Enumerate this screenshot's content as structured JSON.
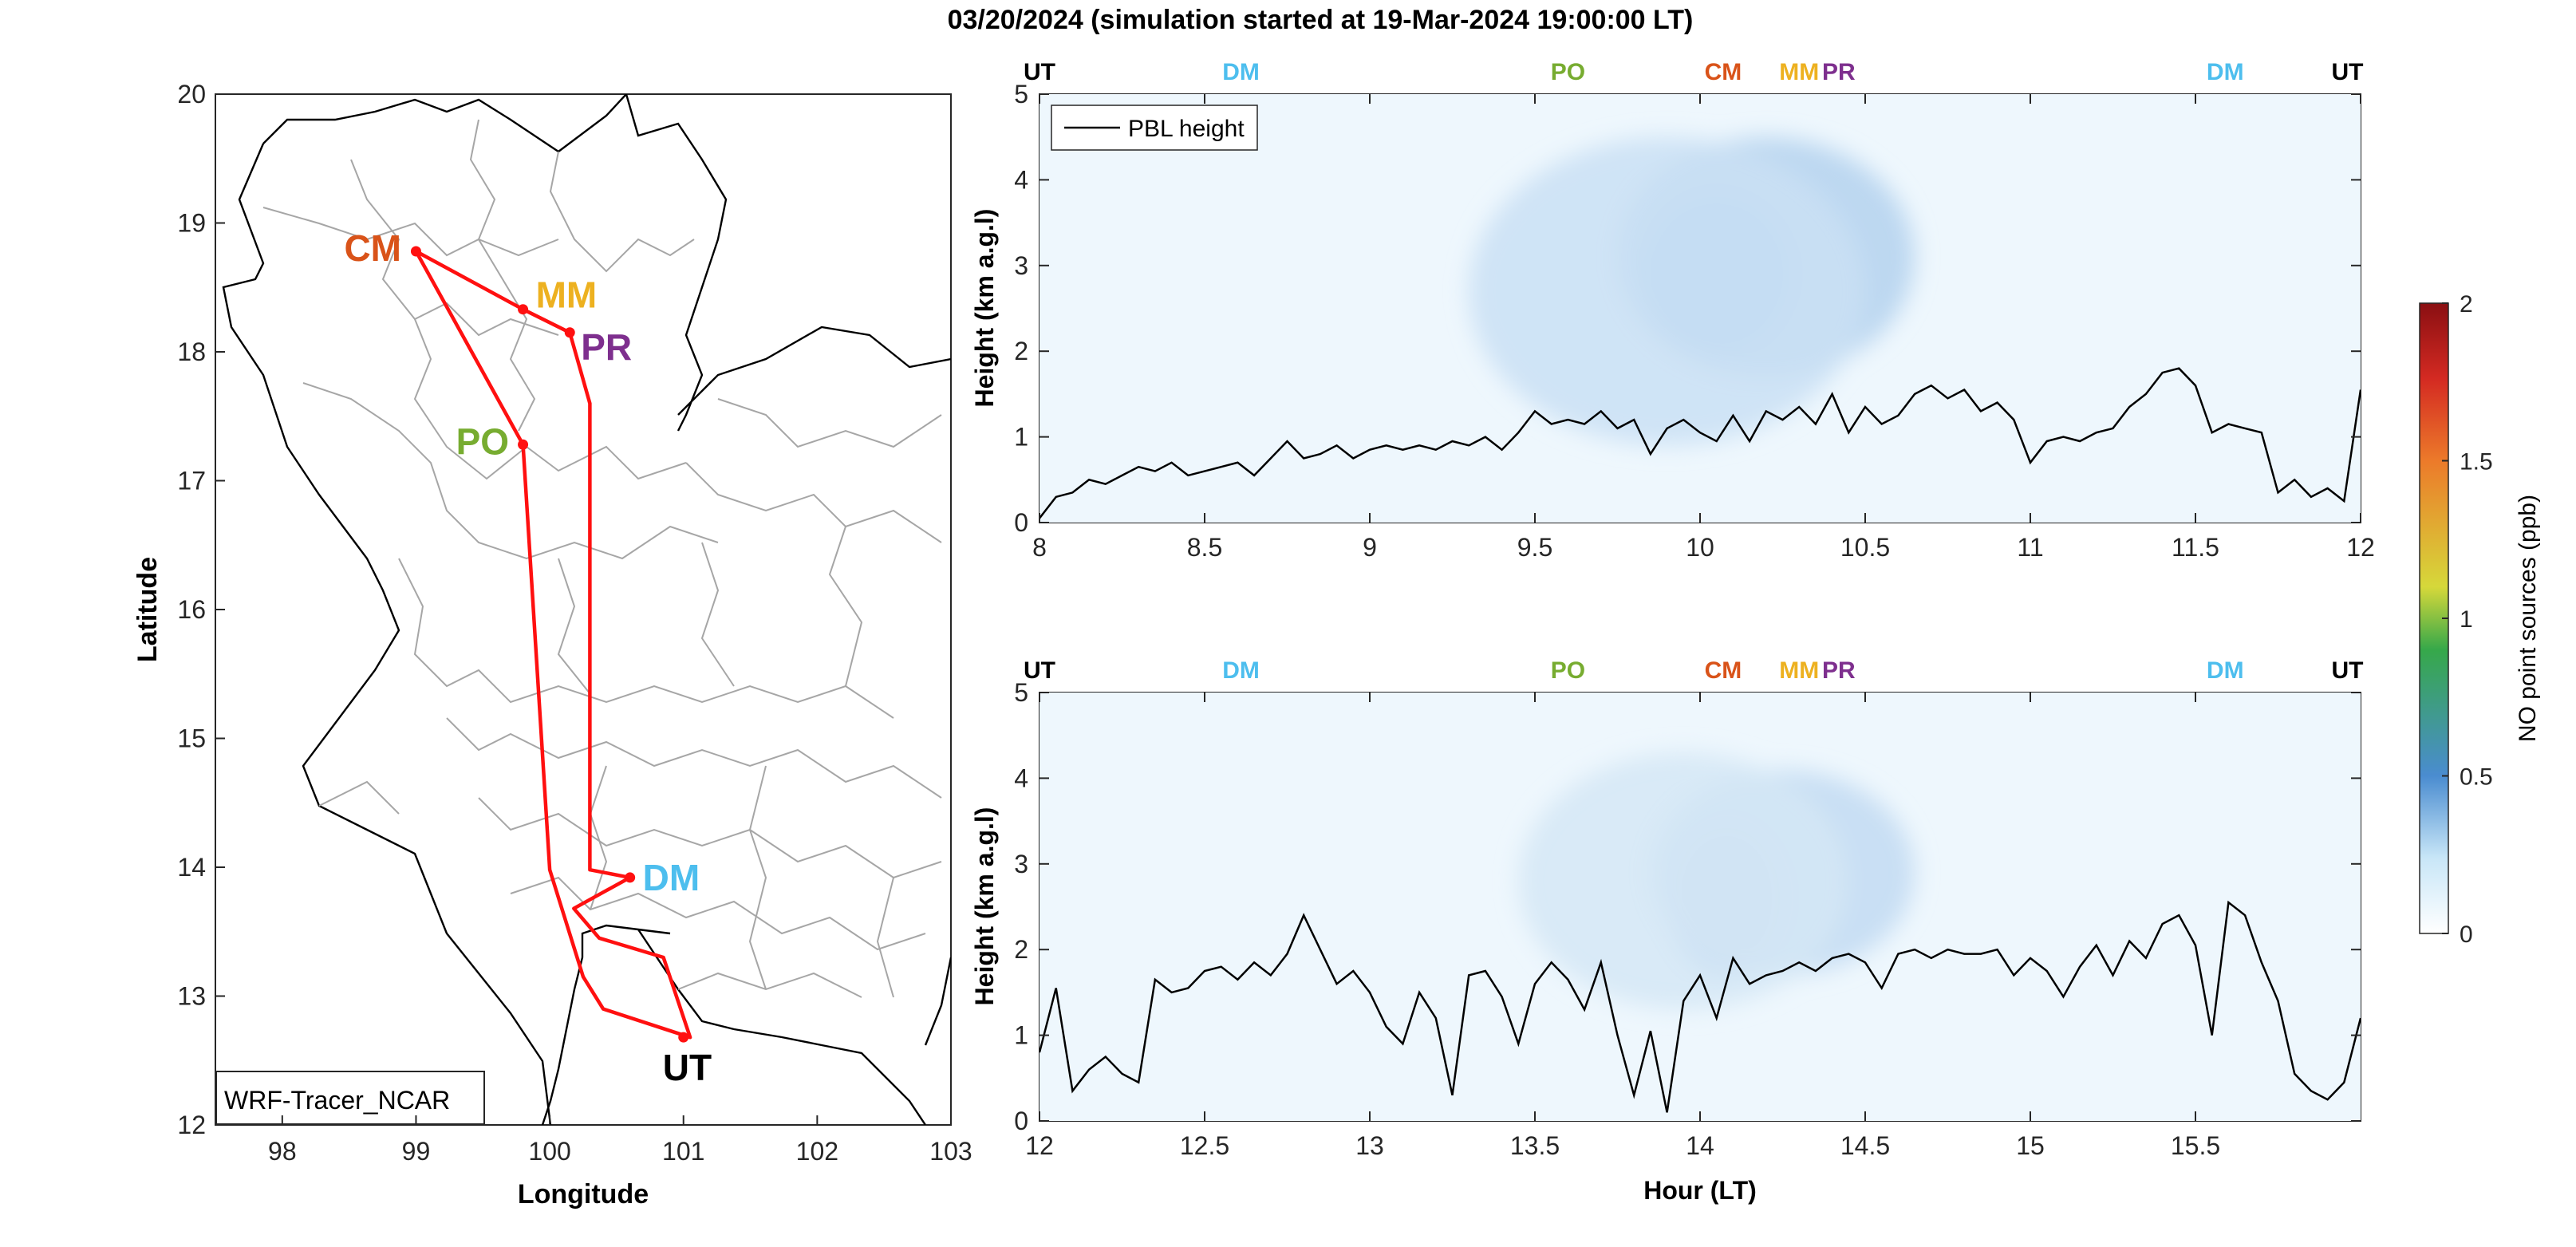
{
  "figure": {
    "title": "03/20/2024 (simulation started at 19-Mar-2024 19:00:00 LT)"
  },
  "map": {
    "xlabel": "Longitude",
    "ylabel": "Latitude",
    "xlim": [
      97.5,
      103
    ],
    "ylim": [
      12,
      20
    ],
    "xticks": [
      98,
      99,
      100,
      101,
      102,
      103
    ],
    "yticks": [
      12,
      13,
      14,
      15,
      16,
      17,
      18,
      19,
      20
    ],
    "model_label": "WRF-Tracer_NCAR",
    "route": [
      [
        99.0,
        18.78
      ],
      [
        99.8,
        18.33
      ],
      [
        100.15,
        18.15
      ],
      [
        100.3,
        17.6
      ],
      [
        100.3,
        13.98
      ],
      [
        100.6,
        13.92
      ],
      [
        100.18,
        13.68
      ],
      [
        100.37,
        13.45
      ],
      [
        100.85,
        13.3
      ],
      [
        101.05,
        12.68
      ],
      [
        100.4,
        12.9
      ],
      [
        100.25,
        13.15
      ],
      [
        100.0,
        13.98
      ],
      [
        99.8,
        17.28
      ],
      [
        99.0,
        18.78
      ]
    ],
    "stations": [
      {
        "code": "CM",
        "lon": 99.0,
        "lat": 18.78,
        "color": "#d95319"
      },
      {
        "code": "MM",
        "lon": 99.8,
        "lat": 18.33,
        "color": "#edb120"
      },
      {
        "code": "PR",
        "lon": 100.15,
        "lat": 18.15,
        "color": "#7e2f8e"
      },
      {
        "code": "PO",
        "lon": 99.8,
        "lat": 17.28,
        "color": "#77ac30"
      },
      {
        "code": "DM",
        "lon": 100.6,
        "lat": 13.92,
        "color": "#4dbeee"
      },
      {
        "code": "UT",
        "lon": 101.0,
        "lat": 12.68,
        "color": "#000000"
      }
    ]
  },
  "colorbar": {
    "label": "NO point sources (ppb)",
    "range": [
      0,
      2
    ],
    "ticks": [
      "0",
      "0.5",
      "1",
      "1.5",
      "2"
    ]
  },
  "chart_data": [
    {
      "type": "line",
      "title": "",
      "ylabel": "Height (km a.g.l)",
      "xlabel": "",
      "xlim": [
        8,
        12
      ],
      "ylim": [
        0,
        5
      ],
      "xticks": [
        "8",
        "8.5",
        "9",
        "9.5",
        "10",
        "10.5",
        "11",
        "11.5",
        "12"
      ],
      "yticks": [
        "0",
        "1",
        "2",
        "3",
        "4",
        "5"
      ],
      "legend": {
        "placement": "top-left",
        "entries": [
          "PBL height"
        ]
      },
      "top_markers": [
        {
          "code": "UT",
          "x": 8.0,
          "color": "#000000"
        },
        {
          "code": "DM",
          "x": 8.61,
          "color": "#4dbeee"
        },
        {
          "code": "PO",
          "x": 9.6,
          "color": "#77ac30"
        },
        {
          "code": "CM",
          "x": 10.07,
          "color": "#d95319"
        },
        {
          "code": "MM",
          "x": 10.3,
          "color": "#edb120"
        },
        {
          "code": "PR",
          "x": 10.42,
          "color": "#7e2f8e"
        },
        {
          "code": "DM",
          "x": 11.59,
          "color": "#4dbeee"
        },
        {
          "code": "UT",
          "x": 11.96,
          "color": "#000000"
        }
      ],
      "concentration_field": {
        "units": "ppb",
        "blobs": [
          {
            "x": 10.05,
            "y": 2.9,
            "sx": 0.22,
            "sy": 0.9,
            "value": 0.5
          },
          {
            "x": 10.2,
            "y": 3.1,
            "sx": 0.45,
            "sy": 1.4,
            "value": 0.2
          },
          {
            "x": 9.9,
            "y": 2.7,
            "sx": 0.6,
            "sy": 1.8,
            "value": 0.12
          }
        ]
      },
      "series": [
        {
          "name": "PBL height",
          "x": [
            8.0,
            8.05,
            8.1,
            8.15,
            8.2,
            8.25,
            8.3,
            8.35,
            8.4,
            8.45,
            8.5,
            8.55,
            8.6,
            8.65,
            8.7,
            8.75,
            8.8,
            8.85,
            8.9,
            8.95,
            9.0,
            9.05,
            9.1,
            9.15,
            9.2,
            9.25,
            9.3,
            9.35,
            9.4,
            9.45,
            9.5,
            9.55,
            9.6,
            9.65,
            9.7,
            9.75,
            9.8,
            9.85,
            9.9,
            9.95,
            10.0,
            10.05,
            10.1,
            10.15,
            10.2,
            10.25,
            10.3,
            10.35,
            10.4,
            10.45,
            10.5,
            10.55,
            10.6,
            10.65,
            10.7,
            10.75,
            10.8,
            10.85,
            10.9,
            10.95,
            11.0,
            11.05,
            11.1,
            11.15,
            11.2,
            11.25,
            11.3,
            11.35,
            11.4,
            11.45,
            11.5,
            11.55,
            11.6,
            11.65,
            11.7,
            11.75,
            11.8,
            11.85,
            11.9,
            11.95,
            12.0
          ],
          "values": [
            0.05,
            0.3,
            0.35,
            0.5,
            0.45,
            0.55,
            0.65,
            0.6,
            0.7,
            0.55,
            0.6,
            0.65,
            0.7,
            0.55,
            0.75,
            0.95,
            0.75,
            0.8,
            0.9,
            0.75,
            0.85,
            0.9,
            0.85,
            0.9,
            0.85,
            0.95,
            0.9,
            1.0,
            0.85,
            1.05,
            1.3,
            1.15,
            1.2,
            1.15,
            1.3,
            1.1,
            1.2,
            0.8,
            1.1,
            1.2,
            1.05,
            0.95,
            1.25,
            0.95,
            1.3,
            1.2,
            1.35,
            1.15,
            1.5,
            1.05,
            1.35,
            1.15,
            1.25,
            1.5,
            1.6,
            1.45,
            1.55,
            1.3,
            1.4,
            1.2,
            0.7,
            0.95,
            1.0,
            0.95,
            1.05,
            1.1,
            1.35,
            1.5,
            1.75,
            1.8,
            1.6,
            1.05,
            1.15,
            1.1,
            1.05,
            0.35,
            0.5,
            0.3,
            0.4,
            0.25,
            1.55
          ]
        }
      ]
    },
    {
      "type": "line",
      "title": "",
      "ylabel": "Height (km a.g.l)",
      "xlabel": "Hour (LT)",
      "xlim": [
        12,
        16
      ],
      "ylim": [
        0,
        5
      ],
      "xticks": [
        "12",
        "12.5",
        "13",
        "13.5",
        "14",
        "14.5",
        "15",
        "15.5"
      ],
      "yticks": [
        "0",
        "1",
        "2",
        "3",
        "4",
        "5"
      ],
      "top_markers": [
        {
          "code": "UT",
          "x": 12.0,
          "color": "#000000"
        },
        {
          "code": "DM",
          "x": 12.61,
          "color": "#4dbeee"
        },
        {
          "code": "PO",
          "x": 13.6,
          "color": "#77ac30"
        },
        {
          "code": "CM",
          "x": 14.07,
          "color": "#d95319"
        },
        {
          "code": "MM",
          "x": 14.3,
          "color": "#edb120"
        },
        {
          "code": "PR",
          "x": 14.42,
          "color": "#7e2f8e"
        },
        {
          "code": "DM",
          "x": 15.59,
          "color": "#4dbeee"
        },
        {
          "code": "UT",
          "x": 15.96,
          "color": "#000000"
        }
      ],
      "concentration_field": {
        "units": "ppb",
        "blobs": [
          {
            "x": 14.08,
            "y": 2.6,
            "sx": 0.18,
            "sy": 0.9,
            "value": 0.3
          },
          {
            "x": 14.25,
            "y": 2.9,
            "sx": 0.4,
            "sy": 1.2,
            "value": 0.15
          },
          {
            "x": 13.95,
            "y": 2.8,
            "sx": 0.5,
            "sy": 1.5,
            "value": 0.08
          }
        ]
      },
      "series": [
        {
          "name": "PBL height",
          "x": [
            12.0,
            12.05,
            12.1,
            12.15,
            12.2,
            12.25,
            12.3,
            12.35,
            12.4,
            12.45,
            12.5,
            12.55,
            12.6,
            12.65,
            12.7,
            12.75,
            12.8,
            12.85,
            12.9,
            12.95,
            13.0,
            13.05,
            13.1,
            13.15,
            13.2,
            13.25,
            13.3,
            13.35,
            13.4,
            13.45,
            13.5,
            13.55,
            13.6,
            13.65,
            13.7,
            13.75,
            13.8,
            13.85,
            13.9,
            13.95,
            14.0,
            14.05,
            14.1,
            14.15,
            14.2,
            14.25,
            14.3,
            14.35,
            14.4,
            14.45,
            14.5,
            14.55,
            14.6,
            14.65,
            14.7,
            14.75,
            14.8,
            14.85,
            14.9,
            14.95,
            15.0,
            15.05,
            15.1,
            15.15,
            15.2,
            15.25,
            15.3,
            15.35,
            15.4,
            15.45,
            15.5,
            15.55,
            15.6,
            15.65,
            15.7,
            15.75,
            15.8,
            15.85,
            15.9,
            15.95,
            16.0
          ],
          "values": [
            0.8,
            1.55,
            0.35,
            0.6,
            0.75,
            0.55,
            0.45,
            1.65,
            1.5,
            1.55,
            1.75,
            1.8,
            1.65,
            1.85,
            1.7,
            1.95,
            2.4,
            2.0,
            1.6,
            1.75,
            1.5,
            1.1,
            0.9,
            1.5,
            1.2,
            0.3,
            1.7,
            1.75,
            1.45,
            0.9,
            1.6,
            1.85,
            1.65,
            1.3,
            1.85,
            1.0,
            0.3,
            1.05,
            0.1,
            1.4,
            1.7,
            1.2,
            1.9,
            1.6,
            1.7,
            1.75,
            1.85,
            1.75,
            1.9,
            1.95,
            1.85,
            1.55,
            1.95,
            2.0,
            1.9,
            2.0,
            1.95,
            1.95,
            2.0,
            1.7,
            1.9,
            1.75,
            1.45,
            1.8,
            2.05,
            1.7,
            2.1,
            1.9,
            2.3,
            2.4,
            2.05,
            1.0,
            2.55,
            2.4,
            1.85,
            1.4,
            0.55,
            0.35,
            0.25,
            0.45,
            1.2
          ]
        }
      ]
    }
  ]
}
